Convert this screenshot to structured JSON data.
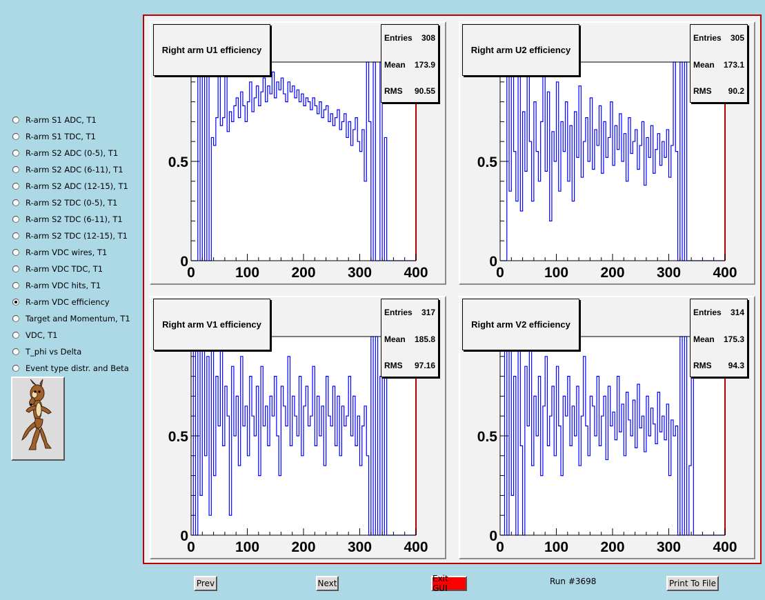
{
  "sidebar": {
    "options": [
      {
        "label": "R-arm S1 ADC, T1",
        "checked": false
      },
      {
        "label": "R-arm S1 TDC, T1",
        "checked": false
      },
      {
        "label": "R-arm S2 ADC (0-5), T1",
        "checked": false
      },
      {
        "label": "R-arm S2 ADC (6-11), T1",
        "checked": false
      },
      {
        "label": "R-arm S2 ADC (12-15), T1",
        "checked": false
      },
      {
        "label": "R-arm S2 TDC (0-5), T1",
        "checked": false
      },
      {
        "label": "R-arm S2 TDC (6-11), T1",
        "checked": false
      },
      {
        "label": "R-arm S2 TDC (12-15), T1",
        "checked": false
      },
      {
        "label": "R-arm VDC wires, T1",
        "checked": false
      },
      {
        "label": "R-arm VDC TDC, T1",
        "checked": false
      },
      {
        "label": "R-arm VDC hits, T1",
        "checked": false
      },
      {
        "label": "R-arm VDC efficiency",
        "checked": true
      },
      {
        "label": "Target and Momentum, T1",
        "checked": false
      },
      {
        "label": "VDC, T1",
        "checked": false
      },
      {
        "label": "T_phi vs Delta",
        "checked": false
      },
      {
        "label": "Event type distr. and Beta",
        "checked": false
      }
    ]
  },
  "buttons": {
    "prev": "Prev",
    "next": "Next",
    "exit": "Exit GUI",
    "print": "Print To File"
  },
  "run_label": "Run #3698",
  "colors": {
    "background": "#add8e6",
    "histogram_line": "#0000ff",
    "frame_border": "#c00000",
    "exit_button": "#ff0000"
  },
  "chart_data": [
    {
      "type": "line",
      "title": "Right arm U1 efficiency",
      "stats": {
        "entries_label": "Entries",
        "entries": "308",
        "mean_label": "Mean",
        "mean": "173.9",
        "rms_label": "RMS",
        "rms": "90.55"
      },
      "xlim": [
        0,
        400
      ],
      "ylim": [
        0,
        1
      ],
      "xticks": [
        "0",
        "100",
        "200",
        "300",
        "400"
      ],
      "yticks": [
        "0",
        "0.5"
      ],
      "series_color": "#0000ff",
      "x": [
        0,
        4,
        8,
        12,
        16,
        20,
        24,
        28,
        32,
        36,
        40,
        44,
        48,
        52,
        56,
        60,
        64,
        68,
        72,
        76,
        80,
        84,
        88,
        92,
        96,
        100,
        104,
        108,
        112,
        116,
        120,
        124,
        128,
        132,
        136,
        140,
        144,
        148,
        152,
        156,
        160,
        164,
        168,
        172,
        176,
        180,
        184,
        188,
        192,
        196,
        200,
        204,
        208,
        212,
        216,
        220,
        224,
        228,
        232,
        236,
        240,
        244,
        248,
        252,
        256,
        260,
        264,
        268,
        272,
        276,
        280,
        284,
        288,
        292,
        296,
        300,
        304,
        308,
        312,
        316,
        320,
        324,
        328,
        332,
        336,
        340,
        344,
        348,
        352,
        356,
        360,
        364,
        368,
        372,
        376,
        380,
        384,
        388,
        392,
        396
      ],
      "values": [
        0,
        0,
        0,
        1.0,
        0.0,
        1.0,
        0.0,
        1.0,
        0.0,
        0.62,
        0.58,
        0.72,
        1.0,
        0.68,
        0.72,
        1.0,
        0.65,
        0.75,
        0.7,
        0.78,
        0.82,
        0.72,
        0.85,
        0.78,
        0.7,
        0.8,
        0.9,
        0.75,
        0.82,
        0.88,
        0.78,
        0.85,
        0.92,
        0.8,
        0.88,
        0.84,
        0.95,
        0.82,
        0.9,
        0.86,
        0.92,
        0.84,
        0.8,
        0.9,
        0.85,
        0.88,
        0.82,
        0.86,
        0.8,
        0.84,
        0.78,
        0.82,
        0.8,
        0.76,
        0.82,
        0.78,
        0.74,
        0.8,
        0.72,
        0.76,
        0.78,
        0.7,
        0.74,
        0.68,
        0.72,
        0.76,
        0.66,
        0.7,
        0.74,
        0.62,
        0.7,
        0.58,
        0.66,
        0.72,
        0.6,
        0.55,
        0.66,
        0.4,
        1.0,
        0.7,
        0.0,
        1.0,
        0.0,
        0.0,
        1.0,
        0.0,
        0.62,
        0.0,
        0,
        0,
        0,
        0,
        0,
        0,
        0,
        0,
        0,
        0,
        0,
        0
      ]
    },
    {
      "type": "line",
      "title": "Right arm U2 efficiency",
      "stats": {
        "entries_label": "Entries",
        "entries": "305",
        "mean_label": "Mean",
        "mean": "173.1",
        "rms_label": "RMS",
        "rms": "90.2"
      },
      "xlim": [
        0,
        400
      ],
      "ylim": [
        0,
        1
      ],
      "xticks": [
        "0",
        "100",
        "200",
        "300",
        "400"
      ],
      "yticks": [
        "0",
        "0.5"
      ],
      "series_color": "#0000ff",
      "x": [
        0,
        4,
        8,
        12,
        16,
        20,
        24,
        28,
        32,
        36,
        40,
        44,
        48,
        52,
        56,
        60,
        64,
        68,
        72,
        76,
        80,
        84,
        88,
        92,
        96,
        100,
        104,
        108,
        112,
        116,
        120,
        124,
        128,
        132,
        136,
        140,
        144,
        148,
        152,
        156,
        160,
        164,
        168,
        172,
        176,
        180,
        184,
        188,
        192,
        196,
        200,
        204,
        208,
        212,
        216,
        220,
        224,
        228,
        232,
        236,
        240,
        244,
        248,
        252,
        256,
        260,
        264,
        268,
        272,
        276,
        280,
        284,
        288,
        292,
        296,
        300,
        304,
        308,
        312,
        316,
        320,
        324,
        328,
        332,
        336,
        340,
        344,
        348,
        352,
        356,
        360,
        364,
        368,
        372,
        376,
        380,
        384,
        388,
        392,
        396
      ],
      "values": [
        0,
        0,
        0,
        1.0,
        0.35,
        1.0,
        0.55,
        0.3,
        1.0,
        0.25,
        0.75,
        0.45,
        1.0,
        0.6,
        0.3,
        0.8,
        0.55,
        0.4,
        0.7,
        1.0,
        0.45,
        0.85,
        0.2,
        0.65,
        0.5,
        0.9,
        0.35,
        0.7,
        0.55,
        0.8,
        0.4,
        0.68,
        0.3,
        0.75,
        0.52,
        0.88,
        0.42,
        0.6,
        0.72,
        0.5,
        0.82,
        0.46,
        0.66,
        0.58,
        0.78,
        0.44,
        0.7,
        0.52,
        0.62,
        0.8,
        0.48,
        0.68,
        0.56,
        0.74,
        0.5,
        0.64,
        0.4,
        0.72,
        0.54,
        0.6,
        0.66,
        0.46,
        0.58,
        0.7,
        0.38,
        0.62,
        0.52,
        0.68,
        0.44,
        0.56,
        0.64,
        0.48,
        0.6,
        0.52,
        0.66,
        0.42,
        0.58,
        1.0,
        0.55,
        0.0,
        1.0,
        0.0,
        1.0,
        0.0,
        0.0,
        0.0,
        0.0,
        0,
        0,
        0,
        0,
        0,
        0,
        0,
        0,
        0,
        0,
        0,
        0,
        0
      ]
    },
    {
      "type": "line",
      "title": "Right arm V1 efficiency",
      "stats": {
        "entries_label": "Entries",
        "entries": "317",
        "mean_label": "Mean",
        "mean": "185.8",
        "rms_label": "RMS",
        "rms": "97.16"
      },
      "xlim": [
        0,
        400
      ],
      "ylim": [
        0,
        1
      ],
      "xticks": [
        "0",
        "100",
        "200",
        "300",
        "400"
      ],
      "yticks": [
        "0",
        "0.5"
      ],
      "series_color": "#0000ff",
      "x": [
        0,
        4,
        8,
        12,
        16,
        20,
        24,
        28,
        32,
        36,
        40,
        44,
        48,
        52,
        56,
        60,
        64,
        68,
        72,
        76,
        80,
        84,
        88,
        92,
        96,
        100,
        104,
        108,
        112,
        116,
        120,
        124,
        128,
        132,
        136,
        140,
        144,
        148,
        152,
        156,
        160,
        164,
        168,
        172,
        176,
        180,
        184,
        188,
        192,
        196,
        200,
        204,
        208,
        212,
        216,
        220,
        224,
        228,
        232,
        236,
        240,
        244,
        248,
        252,
        256,
        260,
        264,
        268,
        272,
        276,
        280,
        284,
        288,
        292,
        296,
        300,
        304,
        308,
        312,
        316,
        320,
        324,
        328,
        332,
        336,
        340,
        344,
        348,
        352,
        356,
        360,
        364,
        368,
        372,
        376,
        380,
        384,
        388,
        392,
        396
      ],
      "values": [
        0,
        1.0,
        0.0,
        1.0,
        0.2,
        1.0,
        0.4,
        0.9,
        0.1,
        1.0,
        0.3,
        0.8,
        0.55,
        1.0,
        0.45,
        0.75,
        0.6,
        0.1,
        0.85,
        0.5,
        0.7,
        0.35,
        0.9,
        0.55,
        0.65,
        0.4,
        0.8,
        0.6,
        0.5,
        0.75,
        0.3,
        0.85,
        0.55,
        0.65,
        0.45,
        0.7,
        0.6,
        0.8,
        0.5,
        0.3,
        0.75,
        0.65,
        0.55,
        0.9,
        0.45,
        0.7,
        0.6,
        0.5,
        0.8,
        0.4,
        0.65,
        0.75,
        0.55,
        0.6,
        0.85,
        0.45,
        0.7,
        0.5,
        0.65,
        0.35,
        0.8,
        0.6,
        0.55,
        0.75,
        0.45,
        0.7,
        0.4,
        0.65,
        0.55,
        0.6,
        0.8,
        0.5,
        0.7,
        0.45,
        0.6,
        0.35,
        0.55,
        0.65,
        0.4,
        0.0,
        1.0,
        0.0,
        1.0,
        0.0,
        0.8,
        0.0,
        1.0,
        0.0,
        0.0,
        0,
        0,
        0,
        0,
        0,
        0,
        0,
        0,
        0,
        0,
        0
      ]
    },
    {
      "type": "line",
      "title": "Right arm V2 efficiency",
      "stats": {
        "entries_label": "Entries",
        "entries": "314",
        "mean_label": "Mean",
        "mean": "175.3",
        "rms_label": "RMS",
        "rms": "94.3"
      },
      "xlim": [
        0,
        400
      ],
      "ylim": [
        0,
        1
      ],
      "xticks": [
        "0",
        "100",
        "200",
        "300",
        "400"
      ],
      "yticks": [
        "0",
        "0.5"
      ],
      "series_color": "#0000ff",
      "x": [
        0,
        4,
        8,
        12,
        16,
        20,
        24,
        28,
        32,
        36,
        40,
        44,
        48,
        52,
        56,
        60,
        64,
        68,
        72,
        76,
        80,
        84,
        88,
        92,
        96,
        100,
        104,
        108,
        112,
        116,
        120,
        124,
        128,
        132,
        136,
        140,
        144,
        148,
        152,
        156,
        160,
        164,
        168,
        172,
        176,
        180,
        184,
        188,
        192,
        196,
        200,
        204,
        208,
        212,
        216,
        220,
        224,
        228,
        232,
        236,
        240,
        244,
        248,
        252,
        256,
        260,
        264,
        268,
        272,
        276,
        280,
        284,
        288,
        292,
        296,
        300,
        304,
        308,
        312,
        316,
        320,
        324,
        328,
        332,
        336,
        340,
        344,
        348,
        352,
        356,
        360,
        364,
        368,
        372,
        376,
        380,
        384,
        388,
        392,
        396
      ],
      "values": [
        0,
        0,
        1.0,
        0.0,
        1.0,
        0.2,
        0.8,
        0.0,
        1.0,
        0.45,
        0.0,
        0.85,
        0.55,
        1.0,
        0.35,
        0.7,
        0.5,
        0.8,
        0.3,
        0.65,
        0.9,
        0.45,
        0.6,
        0.75,
        0.4,
        0.85,
        0.55,
        0.3,
        0.7,
        0.6,
        0.8,
        0.45,
        0.65,
        0.5,
        0.75,
        0.35,
        0.6,
        0.9,
        0.55,
        0.4,
        0.7,
        0.65,
        0.5,
        0.8,
        0.45,
        0.6,
        0.7,
        0.38,
        0.75,
        0.55,
        0.62,
        0.48,
        0.8,
        0.52,
        0.66,
        0.4,
        0.72,
        0.58,
        0.5,
        0.68,
        0.44,
        0.76,
        0.54,
        0.6,
        0.42,
        0.7,
        0.5,
        0.64,
        0.56,
        0.46,
        0.72,
        0.52,
        0.6,
        0.48,
        0.66,
        0.3,
        0.58,
        0.5,
        0.55,
        0.0,
        1.0,
        0.0,
        1.0,
        0.0,
        0.35,
        1.0,
        0.0,
        0.0,
        0,
        0,
        0,
        0,
        0,
        0,
        0,
        0,
        0,
        0,
        0,
        0
      ]
    }
  ]
}
